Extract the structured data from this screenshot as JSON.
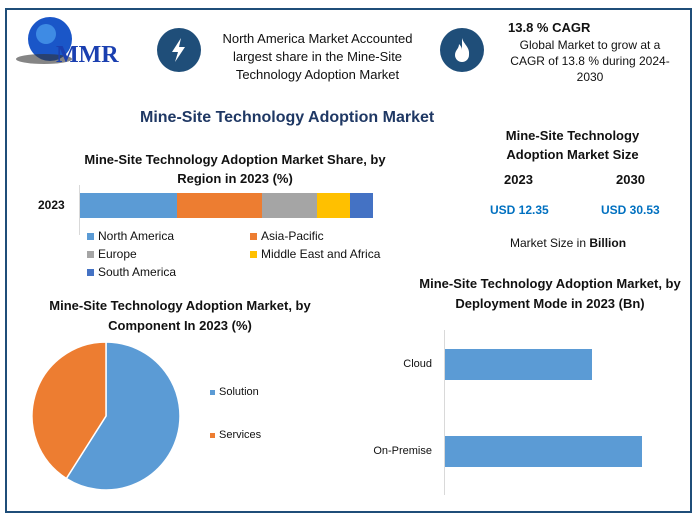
{
  "header": {
    "logo_text": "MMR",
    "highlight1": "North America Market Accounted largest share in the Mine-Site Technology Adoption Market",
    "cagr_title": "13.8 % CAGR",
    "cagr_text": "Global Market to grow at a CAGR of 13.8 % during 2024-2030"
  },
  "main_title": "Mine-Site Technology Adoption Market",
  "market_size": {
    "title": "Mine-Site Technology Adoption Market Size",
    "year1": "2023",
    "year2": "2030",
    "value1": "USD 12.35",
    "value2": "USD 30.53",
    "note_prefix": "Market Size in ",
    "note_bold": "Billion"
  },
  "colors": {
    "blue": "#5b9bd5",
    "orange": "#ed7d31",
    "gray": "#a5a5a5",
    "yellow": "#ffc000",
    "darkblue": "#4472c4",
    "navy": "#1f4e79",
    "value_blue": "#0070c0"
  },
  "chart_data": [
    {
      "type": "bar",
      "orientation": "horizontal",
      "stacked": true,
      "title": "Mine-Site Technology Adoption Market Share, by Region in 2023 (%)",
      "categories": [
        "2023"
      ],
      "series": [
        {
          "name": "North America",
          "values": [
            33
          ]
        },
        {
          "name": "Asia-Pacific",
          "values": [
            29
          ]
        },
        {
          "name": "Europe",
          "values": [
            19
          ]
        },
        {
          "name": "Middle East and Africa",
          "values": [
            11
          ]
        },
        {
          "name": "South America",
          "values": [
            8
          ]
        }
      ],
      "legend": "bottom"
    },
    {
      "type": "pie",
      "title": "Mine-Site Technology Adoption Market, by Component In 2023 (%)",
      "categories": [
        "Solution",
        "Services"
      ],
      "values": [
        59,
        41
      ],
      "legend": "right"
    },
    {
      "type": "bar",
      "orientation": "horizontal",
      "title": "Mine-Site Technology Adoption Market, by Deployment Mode in 2023 (Bn)",
      "categories": [
        "Cloud",
        "On-Premise"
      ],
      "values": [
        5.28,
        7.07
      ]
    }
  ]
}
